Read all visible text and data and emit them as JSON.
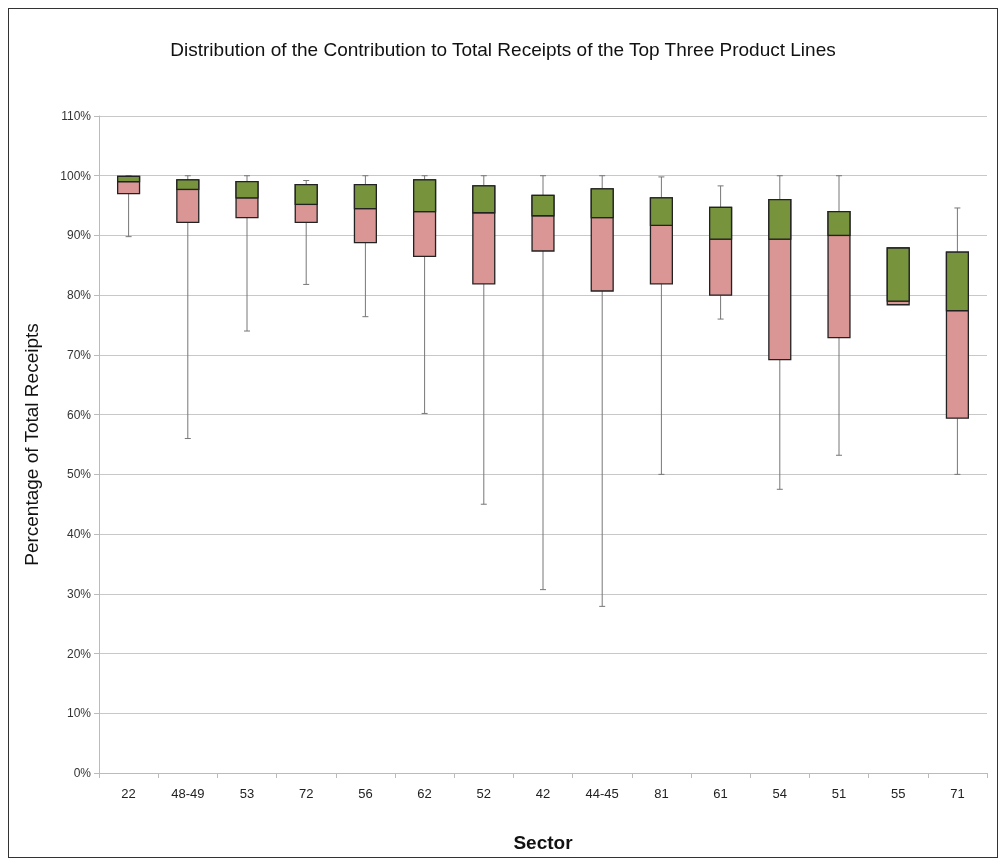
{
  "chart_data": {
    "type": "box",
    "title": "Distribution of the Contribution to Total Receipts of the Top Three Product Lines",
    "xlabel": "Sector",
    "ylabel": "Percentage of Total Receipts",
    "categories": [
      "22",
      "48-49",
      "53",
      "72",
      "56",
      "62",
      "52",
      "42",
      "44-45",
      "81",
      "61",
      "54",
      "51",
      "55",
      "71"
    ],
    "series": [
      {
        "color": "#d99694",
        "boxes": [
          {
            "low": 89.8,
            "q1": 97,
            "median": 99,
            "q3": 99.9,
            "high": 100
          },
          {
            "low": 56,
            "q1": 92.2,
            "median": 97.7,
            "q3": 99.3,
            "high": 100
          },
          {
            "low": 74,
            "q1": 93,
            "median": 96.3,
            "q3": 99,
            "high": 100
          },
          {
            "low": 81.8,
            "q1": 92.2,
            "median": 95.2,
            "q3": 98.5,
            "high": 99.2
          },
          {
            "low": 76.4,
            "q1": 88.8,
            "median": 94.5,
            "q3": 98.5,
            "high": 100
          },
          {
            "low": 60.2,
            "q1": 86.5,
            "median": 94,
            "q3": 99.3,
            "high": 100
          },
          {
            "low": 45,
            "q1": 81.9,
            "median": 93.8,
            "q3": 98.3,
            "high": 100
          },
          {
            "low": 30.7,
            "q1": 87.4,
            "median": 93.3,
            "q3": 96.7,
            "high": 100
          },
          {
            "low": 27.9,
            "q1": 80.7,
            "median": 93,
            "q3": 97.8,
            "high": 100
          },
          {
            "low": 50,
            "q1": 81.9,
            "median": 91.7,
            "q3": 96.3,
            "high": 99.8
          },
          {
            "low": 76,
            "q1": 80,
            "median": 89.4,
            "q3": 94.7,
            "high": 98.3
          },
          {
            "low": 47.5,
            "q1": 69.2,
            "median": 89.4,
            "q3": 96,
            "high": 100
          },
          {
            "low": 53.2,
            "q1": 72.9,
            "median": 90,
            "q3": 94,
            "high": 100
          },
          {
            "low": 78.4,
            "q1": 78.4,
            "median": 79,
            "q3": 87.9,
            "high": 87.9
          },
          {
            "low": 50,
            "q1": 59.4,
            "median": 77.4,
            "q3": 87.2,
            "high": 94.6
          }
        ]
      },
      {
        "type": "bar",
        "color": "#77933c",
        "base": [
          99,
          97.7,
          96.3,
          95.2,
          94.5,
          94,
          93.8,
          93.3,
          93,
          91.7,
          89.4,
          89.4,
          90,
          79,
          77.4
        ],
        "values": [
          0.9,
          1.6,
          2.7,
          3.3,
          4,
          5.3,
          4.5,
          3.4,
          4.8,
          4.6,
          5.3,
          6.6,
          4,
          8.9,
          9.8
        ]
      }
    ],
    "ylim": [
      0,
      110
    ],
    "yticks": [
      {
        "value": 0,
        "label": "0%"
      },
      {
        "value": 10,
        "label": "10%"
      },
      {
        "value": 20,
        "label": "20%"
      },
      {
        "value": 30,
        "label": "30%"
      },
      {
        "value": 40,
        "label": "40%"
      },
      {
        "value": 50,
        "label": "50%"
      },
      {
        "value": 60,
        "label": "60%"
      },
      {
        "value": 70,
        "label": "70%"
      },
      {
        "value": 80,
        "label": "80%"
      },
      {
        "value": 90,
        "label": "90%"
      },
      {
        "value": 100,
        "label": "100%"
      },
      {
        "value": 110,
        "label": "110%"
      }
    ],
    "grid": "y"
  }
}
